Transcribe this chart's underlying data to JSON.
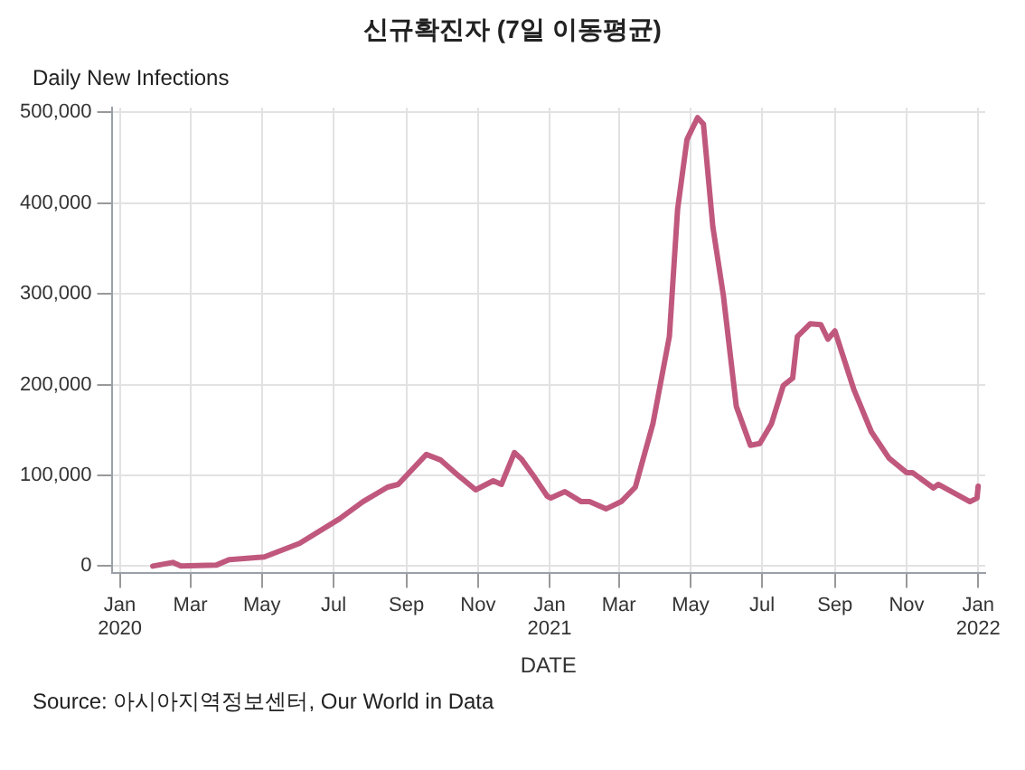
{
  "chart_data": {
    "type": "line",
    "title": "신규확진자 (7일 이동평균)",
    "ylabel": "Daily New Infections",
    "xlabel": "DATE",
    "x": [
      "2020-01-29",
      "2020-02-15",
      "2020-02-22",
      "2020-03-23",
      "2020-04-03",
      "2020-05-03",
      "2020-06-02",
      "2020-07-06",
      "2020-07-26",
      "2020-08-16",
      "2020-08-25",
      "2020-09-18",
      "2020-09-30",
      "2020-10-15",
      "2020-10-30",
      "2020-11-14",
      "2020-11-21",
      "2020-12-02",
      "2020-12-08",
      "2020-12-18",
      "2020-12-30",
      "2021-01-02",
      "2021-01-14",
      "2021-01-28",
      "2021-02-04",
      "2021-02-18",
      "2021-03-03",
      "2021-03-15",
      "2021-03-30",
      "2021-04-13",
      "2021-04-20",
      "2021-04-28",
      "2021-05-07",
      "2021-05-12",
      "2021-05-20",
      "2021-05-29",
      "2021-06-09",
      "2021-06-21",
      "2021-06-29",
      "2021-07-09",
      "2021-07-19",
      "2021-07-27",
      "2021-07-31",
      "2021-08-11",
      "2021-08-20",
      "2021-08-26",
      "2021-09-01",
      "2021-09-17",
      "2021-10-02",
      "2021-10-17",
      "2021-11-01",
      "2021-11-06",
      "2021-11-24",
      "2021-11-28",
      "2021-12-25",
      "2021-12-31",
      "2022-01-01"
    ],
    "series": [
      {
        "color": "#c0587e",
        "values": [
          0,
          4000,
          0,
          1000,
          7000,
          10000,
          25000,
          52000,
          71000,
          87000,
          90000,
          123000,
          117000,
          100000,
          84000,
          94000,
          90000,
          125000,
          118000,
          100000,
          77000,
          75000,
          82000,
          71000,
          71000,
          63000,
          71000,
          87000,
          157000,
          253000,
          393000,
          470000,
          494000,
          487000,
          374000,
          298000,
          176000,
          133000,
          135000,
          157000,
          199000,
          207000,
          253000,
          267000,
          266000,
          250000,
          259000,
          195000,
          148000,
          119000,
          103000,
          103000,
          86000,
          90000,
          71000,
          75000,
          88000
        ]
      }
    ],
    "xlim": [
      "2019-12-25",
      "2022-01-07"
    ],
    "xticks": [
      {
        "value": "2020-01-01",
        "label": "Jan\n2020"
      },
      {
        "value": "2020-03-01",
        "label": "Mar"
      },
      {
        "value": "2020-05-01",
        "label": "May"
      },
      {
        "value": "2020-07-01",
        "label": "Jul"
      },
      {
        "value": "2020-09-01",
        "label": "Sep"
      },
      {
        "value": "2020-11-01",
        "label": "Nov"
      },
      {
        "value": "2021-01-01",
        "label": "Jan\n2021"
      },
      {
        "value": "2021-03-01",
        "label": "Mar"
      },
      {
        "value": "2021-05-01",
        "label": "May"
      },
      {
        "value": "2021-07-01",
        "label": "Jul"
      },
      {
        "value": "2021-09-01",
        "label": "Sep"
      },
      {
        "value": "2021-11-01",
        "label": "Nov"
      },
      {
        "value": "2022-01-01",
        "label": "Jan\n2022"
      }
    ],
    "ylim": [
      -8000,
      505000
    ],
    "yticks": [
      {
        "value": 0,
        "label": "0"
      },
      {
        "value": 100000,
        "label": "100,000"
      },
      {
        "value": 200000,
        "label": "200,000"
      },
      {
        "value": 300000,
        "label": "300,000"
      },
      {
        "value": 400000,
        "label": "400,000"
      },
      {
        "value": 500000,
        "label": "500,000"
      }
    ],
    "grid": true,
    "marker": "none",
    "line_style": "solid",
    "annotations": [
      "Source: 아시아지역정보센터, Our World in Data"
    ]
  }
}
